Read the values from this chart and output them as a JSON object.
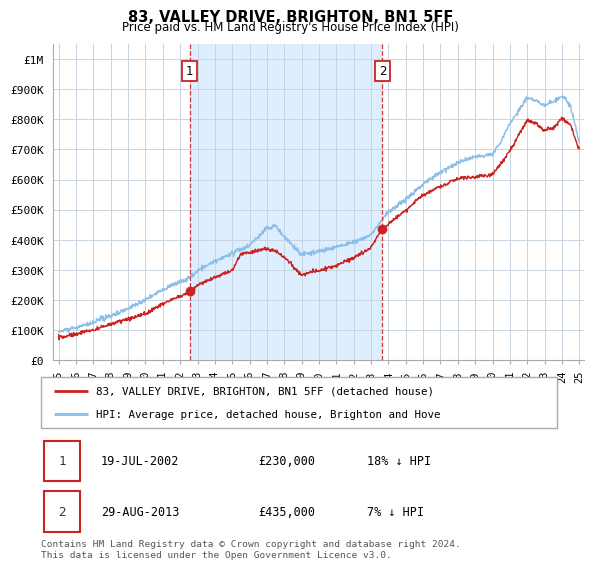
{
  "title": "83, VALLEY DRIVE, BRIGHTON, BN1 5FF",
  "subtitle": "Price paid vs. HM Land Registry's House Price Index (HPI)",
  "ylabel_ticks": [
    "£0",
    "£100K",
    "£200K",
    "£300K",
    "£400K",
    "£500K",
    "£600K",
    "£700K",
    "£800K",
    "£900K",
    "£1M"
  ],
  "ytick_values": [
    0,
    100000,
    200000,
    300000,
    400000,
    500000,
    600000,
    700000,
    800000,
    900000,
    1000000
  ],
  "ylim": [
    0,
    1050000
  ],
  "xlim_start": 1994.7,
  "xlim_end": 2025.3,
  "hpi_color": "#8bbfe8",
  "price_color": "#cc2222",
  "dashed_color": "#cc2222",
  "shade_color": "#ddeeff",
  "sale1_x": 2002.54,
  "sale1_y": 230000,
  "sale2_x": 2013.66,
  "sale2_y": 435000,
  "legend_house_label": "83, VALLEY DRIVE, BRIGHTON, BN1 5FF (detached house)",
  "legend_hpi_label": "HPI: Average price, detached house, Brighton and Hove",
  "table_rows": [
    {
      "num": "1",
      "date": "19-JUL-2002",
      "price": "£230,000",
      "pct": "18% ↓ HPI"
    },
    {
      "num": "2",
      "date": "29-AUG-2013",
      "price": "£435,000",
      "pct": "7% ↓ HPI"
    }
  ],
  "footnote": "Contains HM Land Registry data © Crown copyright and database right 2024.\nThis data is licensed under the Open Government Licence v3.0.",
  "xtick_years": [
    1995,
    1996,
    1997,
    1998,
    1999,
    2000,
    2001,
    2002,
    2003,
    2004,
    2005,
    2006,
    2007,
    2008,
    2009,
    2010,
    2011,
    2012,
    2013,
    2014,
    2015,
    2016,
    2017,
    2018,
    2019,
    2020,
    2021,
    2022,
    2023,
    2024,
    2025
  ],
  "chart_bg": "#f0f4fa"
}
